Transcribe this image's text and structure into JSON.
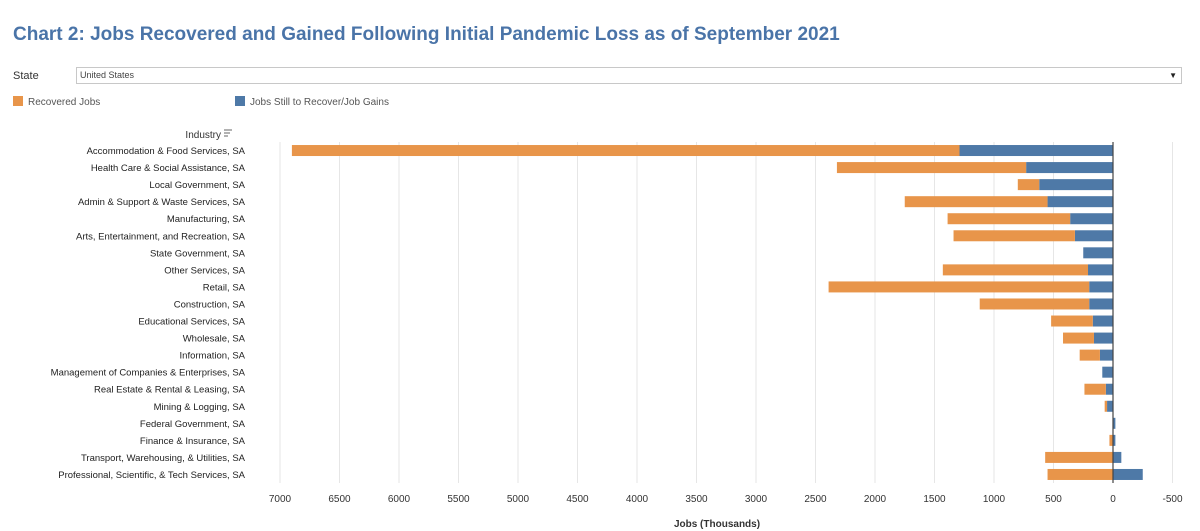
{
  "title": "Chart 2: Jobs Recovered and Gained Following Initial Pandemic Loss as of September 2021",
  "filter": {
    "label": "State",
    "value": "United States"
  },
  "colors": {
    "recovered": "#e8954a",
    "still": "#4e79a7",
    "axis": "#555555",
    "grid": "#e6e6e6"
  },
  "chart_data": {
    "type": "bar",
    "orientation": "horizontal",
    "stacked": true,
    "x_reversed": true,
    "xlabel": "Jobs (Thousands)",
    "ylabel": "Industry",
    "xlim": [
      7300,
      -600
    ],
    "x_ticks": [
      7000,
      6500,
      6000,
      5500,
      5000,
      4500,
      4000,
      3500,
      3000,
      2500,
      2000,
      1500,
      1000,
      500,
      0,
      -500
    ],
    "x_tick_labels": [
      "7000",
      "6500",
      "6000",
      "5500",
      "5000",
      "4500",
      "4000",
      "3500",
      "3000",
      "2500",
      "2000",
      "1500",
      "1000",
      "500",
      "0",
      "-500"
    ],
    "legend": [
      {
        "name": "Recovered Jobs",
        "color_key": "recovered"
      },
      {
        "name": "Jobs Still to Recover/Job Gains",
        "color_key": "still"
      }
    ],
    "legend_position": "top-left",
    "categories": [
      "Accommodation & Food Services, SA",
      "Health Care & Social Assistance, SA",
      "Local Government, SA",
      "Admin & Support & Waste Services, SA",
      "Manufacturing, SA",
      "Arts, Entertainment, and Recreation, SA",
      "State Government, SA",
      "Other Services, SA",
      "Retail, SA",
      "Construction, SA",
      "Educational Services, SA",
      "Wholesale, SA",
      "Information, SA",
      "Management of Companies & Enterprises, SA",
      "Real Estate & Rental & Leasing, SA",
      "Mining & Logging, SA",
      "Federal Government, SA",
      "Finance & Insurance, SA",
      "Transport, Warehousing, & Utilities, SA",
      "Professional, Scientific, & Tech Services, SA"
    ],
    "series": [
      {
        "name": "Jobs Still to Recover/Job Gains",
        "values": [
          1290,
          730,
          620,
          550,
          360,
          320,
          250,
          210,
          200,
          200,
          170,
          160,
          110,
          90,
          60,
          50,
          -20,
          -20,
          -70,
          -250
        ]
      },
      {
        "name": "Recovered Jobs",
        "values": [
          5610,
          1590,
          180,
          1200,
          1030,
          1020,
          0,
          1220,
          2190,
          920,
          350,
          260,
          170,
          0,
          180,
          20,
          0,
          30,
          570,
          550
        ]
      }
    ]
  }
}
